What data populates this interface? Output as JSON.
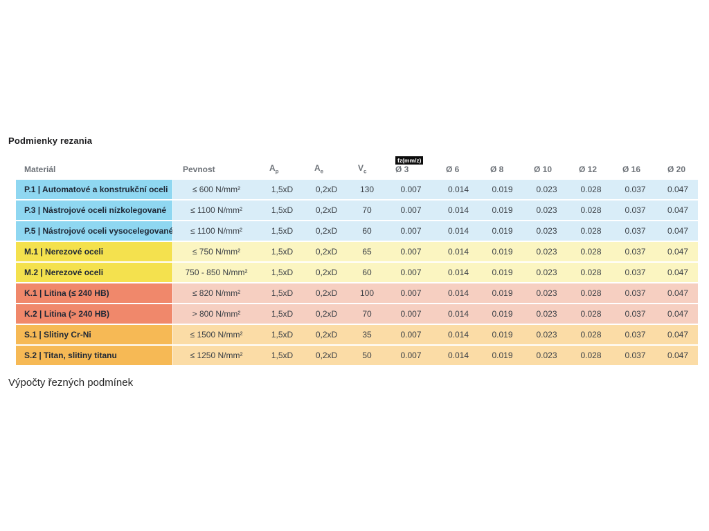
{
  "page": {
    "title": "Podmienky rezania",
    "bottom_text": "Výpočty řezných podmínek"
  },
  "table": {
    "fz_unit_badge": "fz(mm/z)",
    "headers": {
      "material": "Materiál",
      "strength": "Pevnost",
      "ap": {
        "base": "A",
        "sub": "p"
      },
      "ae": {
        "base": "A",
        "sub": "e"
      },
      "vc": {
        "base": "V",
        "sub": "c"
      },
      "diameters": [
        "Ø 3",
        "Ø 6",
        "Ø 8",
        "Ø 10",
        "Ø 12",
        "Ø 16",
        "Ø 20"
      ]
    },
    "group_colors": {
      "P": {
        "label_bg": "#8fd7f1",
        "cell_bg": "#d9edf8"
      },
      "M": {
        "label_bg": "#f4e14e",
        "cell_bg": "#fbf5c1"
      },
      "K": {
        "label_bg": "#f0886b",
        "cell_bg": "#f6cfc1"
      },
      "S": {
        "label_bg": "#f6b955",
        "cell_bg": "#fbdca6"
      }
    },
    "rows": [
      {
        "group": "P",
        "material": "P.1 | Automatové a konstrukční oceli",
        "strength": "≤ 600 N/mm²",
        "ap": "1,5xD",
        "ae": "0,2xD",
        "vc": "130",
        "fz": [
          "0.007",
          "0.014",
          "0.019",
          "0.023",
          "0.028",
          "0.037",
          "0.047"
        ]
      },
      {
        "group": "P",
        "material": "P.3 | Nástrojové oceli nízkolegované",
        "strength": "≤ 1100 N/mm²",
        "ap": "1,5xD",
        "ae": "0,2xD",
        "vc": "70",
        "fz": [
          "0.007",
          "0.014",
          "0.019",
          "0.023",
          "0.028",
          "0.037",
          "0.047"
        ]
      },
      {
        "group": "P",
        "material": "P.5 | Nástrojové oceli vysocelegované",
        "strength": "≤ 1100 N/mm²",
        "ap": "1,5xD",
        "ae": "0,2xD",
        "vc": "60",
        "fz": [
          "0.007",
          "0.014",
          "0.019",
          "0.023",
          "0.028",
          "0.037",
          "0.047"
        ]
      },
      {
        "group": "M",
        "material": "M.1 | Nerezové oceli",
        "strength": "≤ 750 N/mm²",
        "ap": "1,5xD",
        "ae": "0,2xD",
        "vc": "65",
        "fz": [
          "0.007",
          "0.014",
          "0.019",
          "0.023",
          "0.028",
          "0.037",
          "0.047"
        ]
      },
      {
        "group": "M",
        "material": "M.2 | Nerezové oceli",
        "strength": "750 - 850 N/mm²",
        "ap": "1,5xD",
        "ae": "0,2xD",
        "vc": "60",
        "fz": [
          "0.007",
          "0.014",
          "0.019",
          "0.023",
          "0.028",
          "0.037",
          "0.047"
        ]
      },
      {
        "group": "K",
        "material": "K.1 | Litina (≤ 240 HB)",
        "strength": "≤ 820 N/mm²",
        "ap": "1,5xD",
        "ae": "0,2xD",
        "vc": "100",
        "fz": [
          "0.007",
          "0.014",
          "0.019",
          "0.023",
          "0.028",
          "0.037",
          "0.047"
        ]
      },
      {
        "group": "K",
        "material": "K.2 | Litina (> 240 HB)",
        "strength": "> 800 N/mm²",
        "ap": "1,5xD",
        "ae": "0,2xD",
        "vc": "70",
        "fz": [
          "0.007",
          "0.014",
          "0.019",
          "0.023",
          "0.028",
          "0.037",
          "0.047"
        ]
      },
      {
        "group": "S",
        "material": "S.1 | Slitiny Cr-Ni",
        "strength": "≤ 1500 N/mm²",
        "ap": "1,5xD",
        "ae": "0,2xD",
        "vc": "35",
        "fz": [
          "0.007",
          "0.014",
          "0.019",
          "0.023",
          "0.028",
          "0.037",
          "0.047"
        ]
      },
      {
        "group": "S",
        "material": "S.2 | Titan, slitiny titanu",
        "strength": "≤ 1250 N/mm²",
        "ap": "1,5xD",
        "ae": "0,2xD",
        "vc": "50",
        "fz": [
          "0.007",
          "0.014",
          "0.019",
          "0.023",
          "0.028",
          "0.037",
          "0.047"
        ]
      }
    ]
  }
}
